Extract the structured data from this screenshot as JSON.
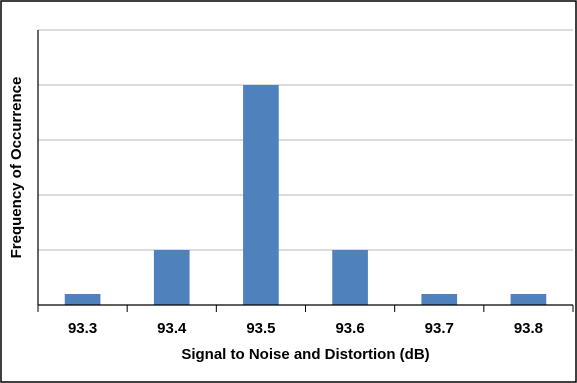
{
  "chart_data": {
    "type": "bar",
    "title": "",
    "xlabel": "Signal to Noise and Distortion (dB)",
    "ylabel": "Frequency of Occurrence",
    "categories": [
      "93.3",
      "93.4",
      "93.5",
      "93.6",
      "93.7",
      "93.8"
    ],
    "values": [
      0.4,
      2,
      8,
      2,
      0.4,
      0.4
    ],
    "ylim": [
      0,
      10
    ],
    "gridlines": [
      2,
      4,
      6,
      8,
      10
    ],
    "grid": true,
    "legend": "none",
    "bar_color": "#4f81bd"
  }
}
